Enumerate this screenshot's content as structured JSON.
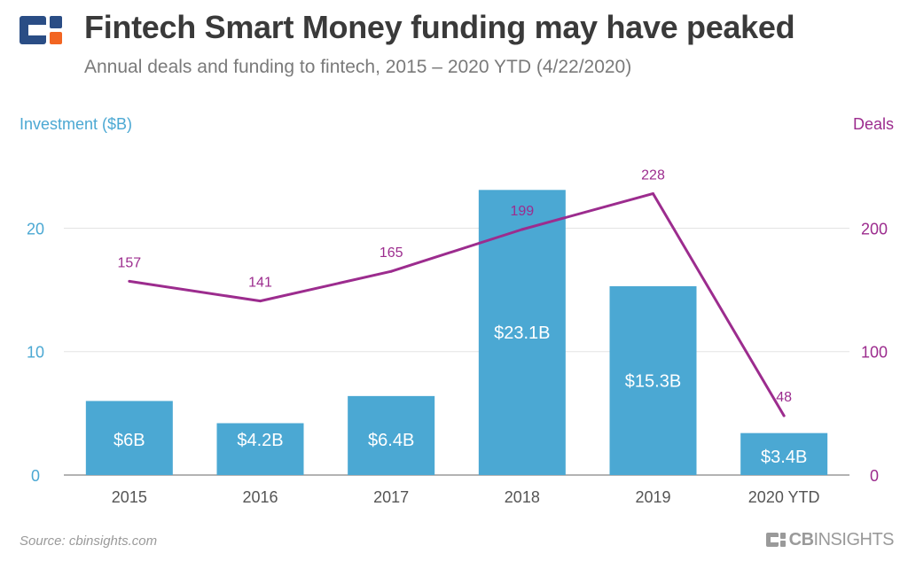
{
  "header": {
    "title": "Fintech Smart Money funding may have peaked",
    "subtitle": "Annual deals and funding to fintech, 2015 – 2020 YTD (4/22/2020)"
  },
  "footer": {
    "source": "Source: cbinsights.com",
    "brand_bold": "CB",
    "brand_rest": "INSIGHTS"
  },
  "colors": {
    "bar": "#4ba8d3",
    "line": "#9c2c8e",
    "axis_left": "#4ba8d3",
    "axis_right": "#9c2c8e",
    "grid": "#e3e3e3",
    "bar_label": "#ffffff",
    "category_label": "#555555"
  },
  "chart_data": {
    "type": "bar",
    "title": "Fintech Smart Money funding may have peaked",
    "categories": [
      "2015",
      "2016",
      "2017",
      "2018",
      "2019",
      "2020 YTD"
    ],
    "series": [
      {
        "name": "Investment ($B)",
        "type": "bar",
        "axis": "left",
        "values": [
          6.0,
          4.2,
          6.4,
          23.1,
          15.3,
          3.4
        ],
        "labels": [
          "$6B",
          "$4.2B",
          "$6.4B",
          "$23.1B",
          "$15.3B",
          "$3.4B"
        ]
      },
      {
        "name": "Deals",
        "type": "line",
        "axis": "right",
        "values": [
          157,
          141,
          165,
          199,
          228,
          48
        ],
        "labels": [
          "157",
          "141",
          "165",
          "199",
          "228",
          "48"
        ]
      }
    ],
    "ylabel": "Investment ($B)",
    "ylabel_right": "Deals",
    "ylim": [
      0,
      27
    ],
    "ylim_right": [
      0,
      270
    ],
    "yticks": [
      0,
      10,
      20
    ],
    "yticks_right": [
      0,
      100,
      200
    ],
    "grid": true,
    "legend": "none"
  }
}
